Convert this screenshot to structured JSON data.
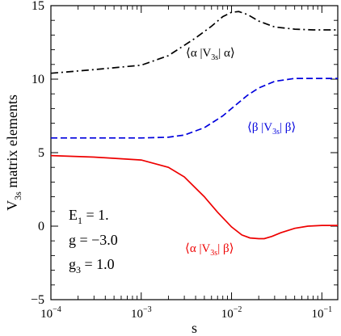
{
  "chart_data": {
    "type": "line",
    "xlabel": "s",
    "ylabel": "V",
    "ylabel_sub": "3s",
    "ylabel_rest": "  matrix elements",
    "xscale": "log",
    "xlim": [
      0.0001,
      0.15
    ],
    "ylim": [
      -5,
      15
    ],
    "x_ticks": [
      0.0001,
      0.001,
      0.01,
      0.1
    ],
    "x_tick_labels": [
      {
        "base": "10",
        "exp": "−4"
      },
      {
        "base": "10",
        "exp": "−3"
      },
      {
        "base": "10",
        "exp": "−2"
      },
      {
        "base": "10",
        "exp": "−1"
      }
    ],
    "y_ticks": [
      -5,
      0,
      5,
      10,
      15
    ],
    "y_tick_labels": [
      "−5",
      "0",
      "5",
      "10",
      "15"
    ],
    "grid": false,
    "legend": "none",
    "series": [
      {
        "label_parts": [
          "⟨α |V",
          "3s",
          "| α⟩"
        ],
        "color": "#000000",
        "dash": "dashdot",
        "x": [
          0.0001,
          0.0003,
          0.001,
          0.002,
          0.004,
          0.006,
          0.008,
          0.01,
          0.012,
          0.015,
          0.02,
          0.03,
          0.05,
          0.08,
          0.15
        ],
        "y": [
          10.4,
          10.65,
          10.95,
          11.6,
          12.8,
          13.6,
          14.25,
          14.55,
          14.6,
          14.4,
          13.95,
          13.55,
          13.4,
          13.35,
          13.35
        ]
      },
      {
        "label_parts": [
          "⟨β |V",
          "3s",
          "| β⟩"
        ],
        "color": "#0000dd",
        "dash": "dashed",
        "x": [
          0.0001,
          0.0003,
          0.001,
          0.002,
          0.003,
          0.005,
          0.008,
          0.01,
          0.015,
          0.02,
          0.03,
          0.05,
          0.08,
          0.15
        ],
        "y": [
          6.0,
          6.0,
          6.0,
          6.05,
          6.2,
          6.7,
          7.5,
          8.0,
          8.9,
          9.4,
          9.85,
          10.05,
          10.05,
          10.05
        ]
      },
      {
        "label_parts": [
          "⟨α |V",
          "3s",
          "| β⟩"
        ],
        "color": "#ee0000",
        "dash": "solid",
        "x": [
          0.0001,
          0.0003,
          0.001,
          0.002,
          0.003,
          0.005,
          0.007,
          0.01,
          0.013,
          0.016,
          0.02,
          0.023,
          0.028,
          0.035,
          0.05,
          0.07,
          0.1,
          0.15
        ],
        "y": [
          4.8,
          4.7,
          4.5,
          4.0,
          3.35,
          2.0,
          0.95,
          -0.05,
          -0.6,
          -0.8,
          -0.85,
          -0.85,
          -0.7,
          -0.45,
          -0.15,
          0.0,
          0.05,
          0.05
        ]
      }
    ],
    "annotations": [
      {
        "name": "e1-annotation",
        "parts": [
          "E",
          "1",
          " = 1."
        ]
      },
      {
        "name": "g-annotation",
        "parts": [
          "g = −3.0"
        ]
      },
      {
        "name": "g3-annotation",
        "parts": [
          "g",
          "3",
          " = 1.0"
        ]
      }
    ]
  }
}
